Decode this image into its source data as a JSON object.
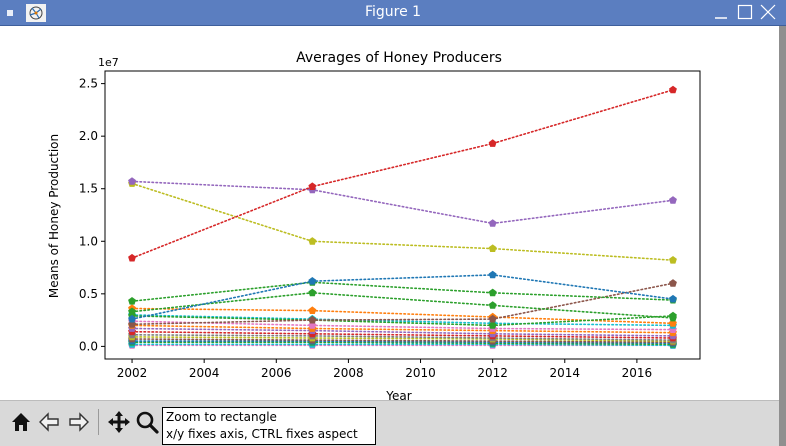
{
  "window": {
    "title": "Figure 1",
    "colors": {
      "titlebar": "#5b7ec0",
      "toolbar": "#d9d9d9"
    }
  },
  "toolbar": {
    "buttons": [
      {
        "name": "home-button",
        "icon": "home-icon"
      },
      {
        "name": "back-button",
        "icon": "left-arrow-icon"
      },
      {
        "name": "forward-button",
        "icon": "right-arrow-icon"
      },
      {
        "name": "pan-button",
        "icon": "move-icon"
      },
      {
        "name": "zoom-button",
        "icon": "magnifier-icon"
      }
    ],
    "tooltip": {
      "line1": "Zoom to rectangle",
      "line2": "x/y fixes axis, CTRL fixes aspect"
    }
  },
  "chart_data": {
    "type": "line",
    "title": "Averages of Honey Producers",
    "xlabel": "Year",
    "ylabel": "Means of Honey Production",
    "offset_label": "1e7",
    "xlim": [
      2001.25,
      2017.75
    ],
    "ylim": [
      -0.12,
      2.62
    ],
    "xticks": [
      2002,
      2004,
      2006,
      2008,
      2010,
      2012,
      2014,
      2016
    ],
    "yticks": [
      0.0,
      0.5,
      1.0,
      1.5,
      2.0,
      2.5
    ],
    "ytick_labels": [
      "0.0",
      "0.5",
      "1.0",
      "1.5",
      "2.0",
      "2.5"
    ],
    "x": [
      2002,
      2007,
      2012,
      2017
    ],
    "line_style": "dotted",
    "markers": "pentagon",
    "grid": false,
    "legend": "none",
    "series": [
      {
        "color": "#d62728",
        "values": [
          0.84,
          1.52,
          1.93,
          2.44
        ]
      },
      {
        "color": "#9467bd",
        "values": [
          1.57,
          1.49,
          1.17,
          1.39
        ]
      },
      {
        "color": "#bcbd22",
        "values": [
          1.55,
          1.0,
          0.93,
          0.82
        ]
      },
      {
        "color": "#1f77b4",
        "values": [
          0.26,
          0.62,
          0.68,
          0.45
        ]
      },
      {
        "color": "#2ca02c",
        "values": [
          0.43,
          0.61,
          0.51,
          0.44
        ]
      },
      {
        "color": "#2ca02c",
        "values": [
          0.33,
          0.51,
          0.39,
          0.27
        ]
      },
      {
        "color": "#8c564b",
        "values": [
          0.21,
          0.25,
          0.26,
          0.6
        ]
      },
      {
        "color": "#2ca02c",
        "values": [
          0.29,
          0.25,
          0.2,
          0.29
        ]
      },
      {
        "color": "#ff7f0e",
        "values": [
          0.36,
          0.34,
          0.28,
          0.22
        ]
      },
      {
        "color": "#17becf",
        "values": [
          0.3,
          0.26,
          0.22,
          0.2
        ]
      },
      {
        "color": "#e377c2",
        "values": [
          0.24,
          0.2,
          0.17,
          0.16
        ]
      },
      {
        "color": "#ff7f0e",
        "values": [
          0.2,
          0.17,
          0.15,
          0.13
        ]
      },
      {
        "color": "#9467bd",
        "values": [
          0.17,
          0.15,
          0.12,
          0.1
        ]
      },
      {
        "color": "#d62728",
        "values": [
          0.14,
          0.12,
          0.1,
          0.08
        ]
      },
      {
        "color": "#7f7f7f",
        "values": [
          0.11,
          0.1,
          0.08,
          0.06
        ]
      },
      {
        "color": "#bcbd22",
        "values": [
          0.09,
          0.08,
          0.07,
          0.05
        ]
      },
      {
        "color": "#8c564b",
        "values": [
          0.07,
          0.06,
          0.05,
          0.04
        ]
      },
      {
        "color": "#1f77b4",
        "values": [
          0.05,
          0.05,
          0.04,
          0.03
        ]
      },
      {
        "color": "#2ca02c",
        "values": [
          0.04,
          0.04,
          0.03,
          0.02
        ]
      },
      {
        "color": "#17becf",
        "values": [
          0.02,
          0.02,
          0.02,
          0.01
        ]
      },
      {
        "color": "#e377c2",
        "values": [
          0.01,
          0.01,
          0.01,
          0.01
        ]
      }
    ]
  }
}
